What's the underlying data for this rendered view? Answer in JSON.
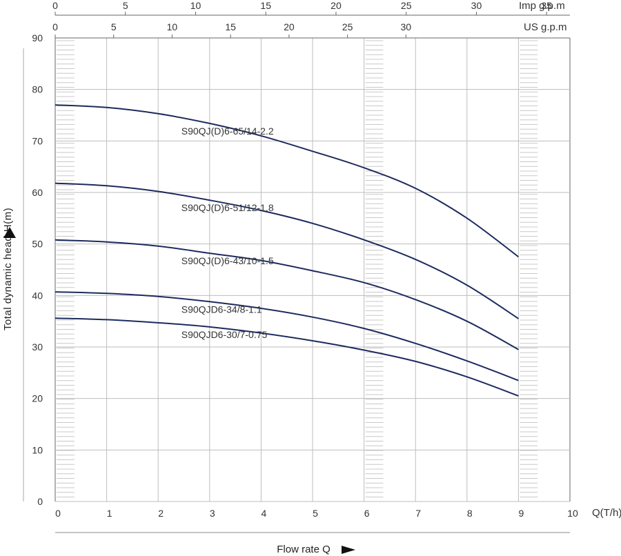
{
  "chart_data": {
    "type": "line",
    "title": "",
    "xlabel": "Flow rate Q",
    "x_unit_label": "Q(T/h)",
    "ylabel": "Total dynamic head H(m)",
    "xlim": [
      0,
      10
    ],
    "ylim": [
      0,
      90
    ],
    "x_ticks": [
      "0",
      "1",
      "2",
      "3",
      "4",
      "5",
      "6",
      "7",
      "8",
      "9",
      "10"
    ],
    "y_ticks": [
      "0",
      "10",
      "20",
      "30",
      "40",
      "50",
      "60",
      "70",
      "80",
      "90"
    ],
    "top_axes": [
      {
        "label": "Imp g.p.m",
        "ticks": [
          "0",
          "5",
          "10",
          "15",
          "20",
          "25",
          "30",
          "35"
        ]
      },
      {
        "label": "US g.p.m",
        "ticks": [
          "0",
          "5",
          "10",
          "15",
          "20",
          "25",
          "30"
        ]
      }
    ],
    "grid": true,
    "series": [
      {
        "name": "S90QJ(D)6-65/14-2.2",
        "x": [
          0,
          1,
          2,
          3,
          4,
          5,
          6,
          7,
          8,
          9
        ],
        "y": [
          77,
          76.5,
          75.3,
          73.4,
          71,
          68,
          64.8,
          60.8,
          55,
          47.5
        ]
      },
      {
        "name": "S90QJ(D)6-51/12-1.8",
        "x": [
          0,
          1,
          2,
          3,
          4,
          5,
          6,
          7,
          8,
          9
        ],
        "y": [
          61.8,
          61.3,
          60.2,
          58.5,
          56.5,
          54,
          50.8,
          47,
          42,
          35.5
        ]
      },
      {
        "name": "S90QJ(D)6-43/10-1.5",
        "x": [
          0,
          1,
          2,
          3,
          4,
          5,
          6,
          7,
          8,
          9
        ],
        "y": [
          50.8,
          50.4,
          49.6,
          48.2,
          46.8,
          44.8,
          42.5,
          39.2,
          35,
          29.5
        ]
      },
      {
        "name": "S90QJD6-34/8-1.1",
        "x": [
          0,
          1,
          2,
          3,
          4,
          5,
          6,
          7,
          8,
          9
        ],
        "y": [
          40.7,
          40.4,
          39.8,
          38.8,
          37.5,
          35.8,
          33.6,
          30.7,
          27.3,
          23.5
        ]
      },
      {
        "name": "S90QJD6-30/7-0.75",
        "x": [
          0,
          1,
          2,
          3,
          4,
          5,
          6,
          7,
          8,
          9
        ],
        "y": [
          35.6,
          35.3,
          34.7,
          33.9,
          32.7,
          31.2,
          29.4,
          27.2,
          24.2,
          20.5
        ]
      }
    ],
    "colors": {
      "curve": "#1c2a5e",
      "grid": "#bdbdbd",
      "axis": "#666666",
      "hatch": "#c8c8c8"
    }
  }
}
